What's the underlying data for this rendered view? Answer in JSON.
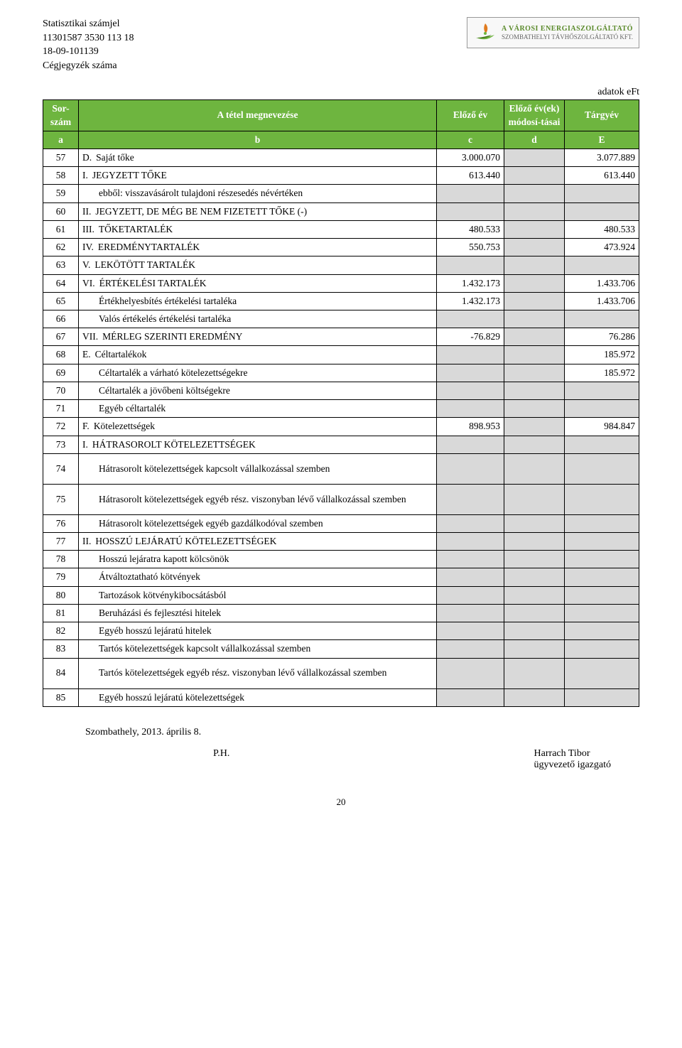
{
  "colors": {
    "header_bg": "#6eb53f",
    "header_fg": "#ffffff",
    "shade_bg": "#d9d9d9",
    "border": "#000000",
    "logo_green": "#5a8a2a",
    "logo_orange": "#e07b1f"
  },
  "header": {
    "line1": "Statisztikai számjel",
    "line2": "11301587 3530 113 18",
    "line3": "18-09-101139",
    "line4": "Cégjegyzék száma"
  },
  "logo": {
    "line1": "A VÁROSI ENERGIASZOLGÁLTATÓ",
    "line2": "SZOMBATHELYI TÁVHŐSZOLGÁLTATÓ KFT."
  },
  "unit_label": "adatok eFt",
  "table": {
    "head": {
      "sor": "Sor-\nszám",
      "megnev": "A tétel megnevezése",
      "elozo": "Előző év",
      "modos": "Előző év(ek) módosí-tásai",
      "targy": "Tárgyév",
      "a": "a",
      "b": "b",
      "c": "c",
      "d": "d",
      "e": "E"
    },
    "rows": [
      {
        "n": "57",
        "p": "D.",
        "name": "Saját tőke",
        "c": "3.000.070",
        "d": "",
        "e": "3.077.889"
      },
      {
        "n": "58",
        "p": "I.",
        "name": "JEGYZETT TŐKE",
        "c": "613.440",
        "d": "",
        "e": "613.440"
      },
      {
        "n": "59",
        "p": "",
        "name": "ebből: visszavásárolt tulajdoni részesedés névértéken",
        "c": "",
        "d": "",
        "e": ""
      },
      {
        "n": "60",
        "p": "II.",
        "name": "JEGYZETT, DE MÉG BE NEM FIZETETT TŐKE (-)",
        "c": "",
        "d": "",
        "e": ""
      },
      {
        "n": "61",
        "p": "III.",
        "name": "TŐKETARTALÉK",
        "c": "480.533",
        "d": "",
        "e": "480.533"
      },
      {
        "n": "62",
        "p": "IV.",
        "name": "EREDMÉNYTARTALÉK",
        "c": "550.753",
        "d": "",
        "e": "473.924"
      },
      {
        "n": "63",
        "p": "V.",
        "name": "LEKÖTÖTT TARTALÉK",
        "c": "",
        "d": "",
        "e": ""
      },
      {
        "n": "64",
        "p": "VI.",
        "name": "ÉRTÉKELÉSI TARTALÉK",
        "c": "1.432.173",
        "d": "",
        "e": "1.433.706"
      },
      {
        "n": "65",
        "p": "",
        "name": "Értékhelyesbítés értékelési tartaléka",
        "c": "1.432.173",
        "d": "",
        "e": "1.433.706"
      },
      {
        "n": "66",
        "p": "",
        "name": "Valós értékelés értékelési tartaléka",
        "c": "",
        "d": "",
        "e": ""
      },
      {
        "n": "67",
        "p": "VII.",
        "name": "MÉRLEG SZERINTI EREDMÉNY",
        "c": "-76.829",
        "d": "",
        "e": "76.286"
      },
      {
        "n": "68",
        "p": "E.",
        "name": "Céltartalékok",
        "c": "",
        "d": "",
        "e": "185.972"
      },
      {
        "n": "69",
        "p": "",
        "name": "Céltartalék a várható kötelezettségekre",
        "c": "",
        "d": "",
        "e": "185.972"
      },
      {
        "n": "70",
        "p": "",
        "name": "Céltartalék a jövőbeni költségekre",
        "c": "",
        "d": "",
        "e": ""
      },
      {
        "n": "71",
        "p": "",
        "name": "Egyéb céltartalék",
        "c": "",
        "d": "",
        "e": ""
      },
      {
        "n": "72",
        "p": "F.",
        "name": "Kötelezettségek",
        "c": "898.953",
        "d": "",
        "e": "984.847"
      },
      {
        "n": "73",
        "p": "I.",
        "name": "HÁTRASOROLT KÖTELEZETTSÉGEK",
        "c": "",
        "d": "",
        "e": ""
      },
      {
        "n": "74",
        "p": "",
        "name": "Hátrasorolt kötelezettségek kapcsolt vállalkozással szemben",
        "c": "",
        "d": "",
        "e": "",
        "tall": true
      },
      {
        "n": "75",
        "p": "",
        "name": "Hátrasorolt kötelezettségek egyéb rész. viszonyban lévő vállalkozással szemben",
        "c": "",
        "d": "",
        "e": "",
        "tall": true
      },
      {
        "n": "76",
        "p": "",
        "name": "Hátrasorolt kötelezettségek egyéb gazdálkodóval szemben",
        "c": "",
        "d": "",
        "e": ""
      },
      {
        "n": "77",
        "p": "II.",
        "name": "HOSSZÚ LEJÁRATÚ KÖTELEZETTSÉGEK",
        "c": "",
        "d": "",
        "e": ""
      },
      {
        "n": "78",
        "p": "",
        "name": "Hosszú lejáratra kapott kölcsönök",
        "c": "",
        "d": "",
        "e": ""
      },
      {
        "n": "79",
        "p": "",
        "name": "Átváltoztatható kötvények",
        "c": "",
        "d": "",
        "e": ""
      },
      {
        "n": "80",
        "p": "",
        "name": "Tartozások kötvénykibocsátásból",
        "c": "",
        "d": "",
        "e": ""
      },
      {
        "n": "81",
        "p": "",
        "name": "Beruházási és fejlesztési hitelek",
        "c": "",
        "d": "",
        "e": ""
      },
      {
        "n": "82",
        "p": "",
        "name": "Egyéb hosszú lejáratú hitelek",
        "c": "",
        "d": "",
        "e": ""
      },
      {
        "n": "83",
        "p": "",
        "name": "Tartós kötelezettségek kapcsolt vállalkozással szemben",
        "c": "",
        "d": "",
        "e": ""
      },
      {
        "n": "84",
        "p": "",
        "name": "Tartós kötelezettségek egyéb rész. viszonyban lévő vállalkozással szemben",
        "c": "",
        "d": "",
        "e": "",
        "tall": true
      },
      {
        "n": "85",
        "p": "",
        "name": "Egyéb hosszú lejáratú kötelezettségek",
        "c": "",
        "d": "",
        "e": ""
      }
    ]
  },
  "footer": {
    "place_date": "Szombathely, 2013. április 8.",
    "ph": "P.H.",
    "sign_name": "Harrach   Tibor",
    "sign_title": "ügyvezető igazgató"
  },
  "page_number": "20"
}
